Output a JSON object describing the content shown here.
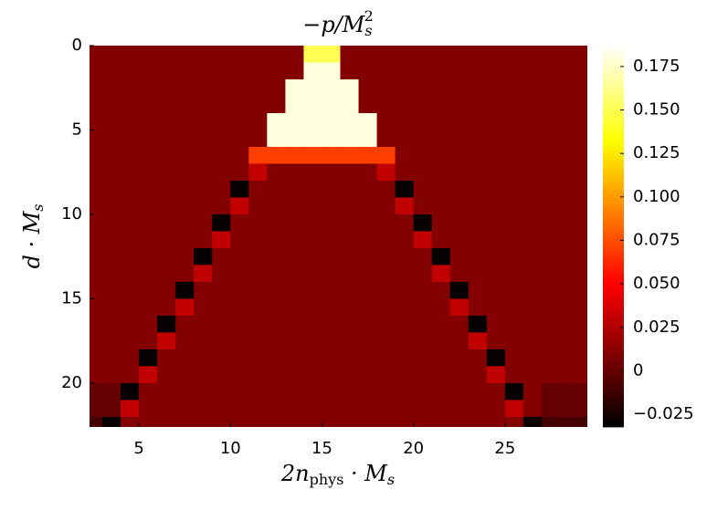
{
  "chart_data": {
    "type": "heatmap",
    "title": [
      "−p/M",
      "s",
      "2"
    ],
    "xlabel": [
      "2n",
      "phys",
      " · M",
      "s"
    ],
    "ylabel": [
      "d · M",
      "s"
    ],
    "colormap": "hot",
    "xlim": [
      2.3,
      29.5
    ],
    "ylim": [
      0,
      22.6
    ],
    "y_reversed": true,
    "xticks": [
      5,
      10,
      15,
      20,
      25
    ],
    "yticks": [
      0,
      5,
      10,
      15,
      20
    ],
    "clim": [
      -0.0323,
      0.187
    ],
    "cticks": [
      {
        "value": -0.025,
        "label": "−0.025"
      },
      0,
      0.025,
      {
        "value": 0.05,
        "label": "0.050"
      },
      0.075,
      {
        "value": 0.1,
        "label": "0.100"
      },
      0.125,
      {
        "value": 0.15,
        "label": "0.150"
      },
      0.175
    ],
    "x": [
      2.5,
      3.5,
      4.5,
      5.5,
      6.5,
      7.5,
      8.5,
      9.5,
      10.5,
      11.5,
      12.5,
      13.5,
      14.5,
      15.5,
      16.5,
      17.5,
      18.5,
      19.5,
      20.5,
      21.5,
      22.5,
      23.5,
      24.5,
      25.5,
      26.5,
      27.5,
      28.5,
      29.5
    ],
    "y": [
      0.5,
      1.5,
      2.5,
      3.5,
      4.5,
      5.5,
      6.5,
      7.5,
      8.5,
      9.5,
      10.5,
      11.5,
      12.5,
      13.5,
      14.5,
      15.5,
      16.5,
      17.5,
      18.5,
      19.5,
      20.5,
      21.5,
      22.5
    ],
    "z": [
      [
        0.01,
        0.01,
        0.01,
        0.01,
        0.01,
        0.01,
        0.01,
        0.01,
        0.01,
        0.01,
        0.01,
        0.01,
        0.15,
        0.15,
        0.01,
        0.01,
        0.01,
        0.01,
        0.01,
        0.01,
        0.01,
        0.01,
        0.01,
        0.01,
        0.01,
        0.01,
        0.01,
        0.01
      ],
      [
        0.01,
        0.01,
        0.01,
        0.01,
        0.01,
        0.01,
        0.01,
        0.01,
        0.01,
        0.01,
        0.01,
        0.01,
        0.18,
        0.18,
        0.01,
        0.01,
        0.01,
        0.01,
        0.01,
        0.01,
        0.01,
        0.01,
        0.01,
        0.01,
        0.01,
        0.01,
        0.01,
        0.01
      ],
      [
        0.01,
        0.01,
        0.01,
        0.01,
        0.01,
        0.01,
        0.01,
        0.01,
        0.01,
        0.01,
        0.01,
        0.18,
        0.18,
        0.18,
        0.18,
        0.01,
        0.01,
        0.01,
        0.01,
        0.01,
        0.01,
        0.01,
        0.01,
        0.01,
        0.01,
        0.01,
        0.01,
        0.01
      ],
      [
        0.01,
        0.01,
        0.01,
        0.01,
        0.01,
        0.01,
        0.01,
        0.01,
        0.01,
        0.01,
        0.01,
        0.18,
        0.18,
        0.18,
        0.18,
        0.01,
        0.01,
        0.01,
        0.01,
        0.01,
        0.01,
        0.01,
        0.01,
        0.01,
        0.01,
        0.01,
        0.01,
        0.01
      ],
      [
        0.01,
        0.01,
        0.01,
        0.01,
        0.01,
        0.01,
        0.01,
        0.01,
        0.01,
        0.01,
        0.18,
        0.18,
        0.18,
        0.18,
        0.18,
        0.18,
        0.01,
        0.01,
        0.01,
        0.01,
        0.01,
        0.01,
        0.01,
        0.01,
        0.01,
        0.01,
        0.01,
        0.01
      ],
      [
        0.01,
        0.01,
        0.01,
        0.01,
        0.01,
        0.01,
        0.01,
        0.01,
        0.01,
        0.01,
        0.18,
        0.18,
        0.18,
        0.18,
        0.18,
        0.18,
        0.01,
        0.01,
        0.01,
        0.01,
        0.01,
        0.01,
        0.01,
        0.01,
        0.01,
        0.01,
        0.01,
        0.01
      ],
      [
        0.01,
        0.01,
        0.01,
        0.01,
        0.01,
        0.01,
        0.01,
        0.01,
        0.01,
        0.07,
        0.07,
        0.07,
        0.07,
        0.07,
        0.07,
        0.07,
        0.07,
        0.01,
        0.01,
        0.01,
        0.01,
        0.01,
        0.01,
        0.01,
        0.01,
        0.01,
        0.01,
        0.01
      ],
      [
        0.01,
        0.01,
        0.01,
        0.01,
        0.01,
        0.01,
        0.01,
        0.01,
        0.01,
        0.03,
        0.01,
        0.01,
        0.01,
        0.01,
        0.01,
        0.01,
        0.03,
        0.01,
        0.01,
        0.01,
        0.01,
        0.01,
        0.01,
        0.01,
        0.01,
        0.01,
        0.01,
        0.01
      ],
      [
        0.01,
        0.01,
        0.01,
        0.01,
        0.01,
        0.01,
        0.01,
        0.01,
        -0.03,
        0.01,
        0.01,
        0.01,
        0.01,
        0.01,
        0.01,
        0.01,
        0.01,
        -0.03,
        0.01,
        0.01,
        0.01,
        0.01,
        0.01,
        0.01,
        0.01,
        0.01,
        0.01,
        0.01
      ],
      [
        0.01,
        0.01,
        0.01,
        0.01,
        0.01,
        0.01,
        0.01,
        0.01,
        0.03,
        0.01,
        0.01,
        0.01,
        0.01,
        0.01,
        0.01,
        0.01,
        0.01,
        0.03,
        0.01,
        0.01,
        0.01,
        0.01,
        0.01,
        0.01,
        0.01,
        0.01,
        0.01,
        0.01
      ],
      [
        0.01,
        0.01,
        0.01,
        0.01,
        0.01,
        0.01,
        0.01,
        -0.03,
        0.01,
        0.01,
        0.01,
        0.01,
        0.01,
        0.01,
        0.01,
        0.01,
        0.01,
        0.01,
        -0.03,
        0.01,
        0.01,
        0.01,
        0.01,
        0.01,
        0.01,
        0.01,
        0.01,
        0.01
      ],
      [
        0.01,
        0.01,
        0.01,
        0.01,
        0.01,
        0.01,
        0.01,
        0.03,
        0.01,
        0.01,
        0.01,
        0.01,
        0.01,
        0.01,
        0.01,
        0.01,
        0.01,
        0.01,
        0.03,
        0.01,
        0.01,
        0.01,
        0.01,
        0.01,
        0.01,
        0.01,
        0.01,
        0.01
      ],
      [
        0.01,
        0.01,
        0.01,
        0.01,
        0.01,
        0.01,
        -0.03,
        0.01,
        0.01,
        0.01,
        0.01,
        0.01,
        0.01,
        0.01,
        0.01,
        0.01,
        0.01,
        0.01,
        0.01,
        -0.03,
        0.01,
        0.01,
        0.01,
        0.01,
        0.01,
        0.01,
        0.01,
        0.01
      ],
      [
        0.01,
        0.01,
        0.01,
        0.01,
        0.01,
        0.01,
        0.03,
        0.01,
        0.01,
        0.01,
        0.01,
        0.01,
        0.01,
        0.01,
        0.01,
        0.01,
        0.01,
        0.01,
        0.01,
        0.03,
        0.01,
        0.01,
        0.01,
        0.01,
        0.01,
        0.01,
        0.01,
        0.01
      ],
      [
        0.01,
        0.01,
        0.01,
        0.01,
        0.01,
        -0.03,
        0.01,
        0.01,
        0.01,
        0.01,
        0.01,
        0.01,
        0.01,
        0.01,
        0.01,
        0.01,
        0.01,
        0.01,
        0.01,
        0.01,
        -0.03,
        0.01,
        0.01,
        0.01,
        0.01,
        0.01,
        0.01,
        0.01
      ],
      [
        0.01,
        0.01,
        0.01,
        0.01,
        0.01,
        0.03,
        0.01,
        0.01,
        0.01,
        0.01,
        0.01,
        0.01,
        0.01,
        0.01,
        0.01,
        0.01,
        0.01,
        0.01,
        0.01,
        0.01,
        0.03,
        0.01,
        0.01,
        0.01,
        0.01,
        0.01,
        0.01,
        0.01
      ],
      [
        0.01,
        0.01,
        0.01,
        0.01,
        -0.03,
        0.01,
        0.01,
        0.01,
        0.01,
        0.01,
        0.01,
        0.01,
        0.01,
        0.01,
        0.01,
        0.01,
        0.01,
        0.01,
        0.01,
        0.01,
        0.01,
        -0.03,
        0.01,
        0.01,
        0.01,
        0.01,
        0.01,
        0.01
      ],
      [
        0.01,
        0.01,
        0.01,
        0.01,
        0.03,
        0.01,
        0.01,
        0.01,
        0.01,
        0.01,
        0.01,
        0.01,
        0.01,
        0.01,
        0.01,
        0.01,
        0.01,
        0.01,
        0.01,
        0.01,
        0.01,
        0.03,
        0.01,
        0.01,
        0.01,
        0.01,
        0.01,
        0.01
      ],
      [
        0.01,
        0.01,
        0.01,
        -0.03,
        0.01,
        0.01,
        0.01,
        0.01,
        0.01,
        0.01,
        0.01,
        0.01,
        0.01,
        0.01,
        0.01,
        0.01,
        0.01,
        0.01,
        0.01,
        0.01,
        0.01,
        0.01,
        -0.03,
        0.01,
        0.01,
        0.01,
        0.01,
        0.01
      ],
      [
        0.01,
        0.01,
        0.01,
        0.03,
        0.01,
        0.01,
        0.01,
        0.01,
        0.01,
        0.01,
        0.01,
        0.01,
        0.01,
        0.01,
        0.01,
        0.01,
        0.01,
        0.01,
        0.01,
        0.01,
        0.01,
        0.01,
        0.03,
        0.01,
        0.01,
        0.01,
        0.01,
        0.01
      ],
      [
        0,
        0,
        -0.03,
        0.01,
        0.01,
        0.01,
        0.01,
        0.01,
        0.01,
        0.01,
        0.01,
        0.01,
        0.01,
        0.01,
        0.01,
        0.01,
        0.01,
        0.01,
        0.01,
        0.01,
        0.01,
        0.01,
        0.01,
        -0.03,
        0.01,
        0,
        0,
        0
      ],
      [
        0,
        0,
        0.03,
        0.01,
        0.01,
        0.01,
        0.01,
        0.01,
        0.01,
        0.01,
        0.01,
        0.01,
        0.01,
        0.01,
        0.01,
        0.01,
        0.01,
        0.01,
        0.01,
        0.01,
        0.01,
        0.01,
        0.01,
        0.03,
        0.01,
        0,
        0,
        0
      ],
      [
        -0.01,
        -0.03,
        0.01,
        0.01,
        0.01,
        0.01,
        0.01,
        0.01,
        0.01,
        0.01,
        0.01,
        0.01,
        0.01,
        0.01,
        0.01,
        0.01,
        0.01,
        0.01,
        0.01,
        0.01,
        0.01,
        0.01,
        0.01,
        0.01,
        -0.03,
        -0.01,
        -0.01,
        -0.01
      ]
    ]
  }
}
